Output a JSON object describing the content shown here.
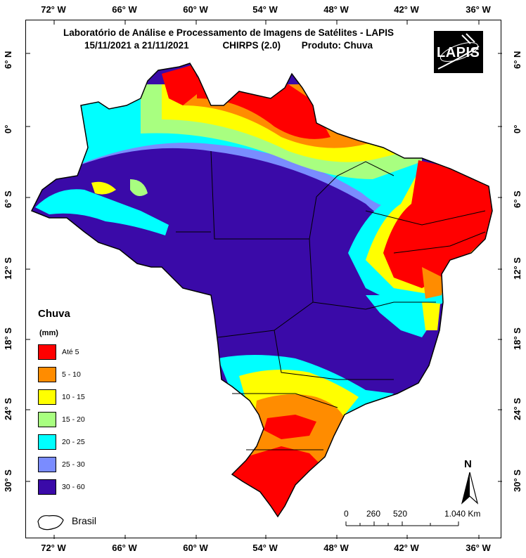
{
  "title": {
    "line1": "Laboratório de Análise e Processamento de Imagens de Satélites - LAPIS",
    "period": "15/11/2021  a 21/11/2021",
    "dataset": "CHIRPS (2.0)",
    "product": "Produto: Chuva"
  },
  "logo": {
    "text": "LAPIS"
  },
  "axes": {
    "longitude_top": [
      "72° W",
      "66° W",
      "60° W",
      "54° W",
      "48° W",
      "42° W",
      "36° W"
    ],
    "longitude_bottom": [
      "72° W",
      "66° W",
      "60° W",
      "54° W",
      "48° W",
      "42° W",
      "36° W"
    ],
    "latitude_left": [
      "6° N",
      "0°",
      "6° S",
      "12° S",
      "18° S",
      "24° S",
      "30° S"
    ],
    "latitude_right": [
      "6° N",
      "0°",
      "6° S",
      "12° S",
      "18° S",
      "24° S",
      "30° S"
    ]
  },
  "legend": {
    "title": "Chuva",
    "unit": "(mm)",
    "classes": [
      {
        "label": "Até 5",
        "color": "#ff0000"
      },
      {
        "label": "5 - 10",
        "color": "#ff8c00"
      },
      {
        "label": "10 - 15",
        "color": "#ffff00"
      },
      {
        "label": "15 - 20",
        "color": "#a8ff80"
      },
      {
        "label": "20 - 25",
        "color": "#00ffff"
      },
      {
        "label": "25 - 30",
        "color": "#7a8cff"
      },
      {
        "label": "30 - 60",
        "color": "#3a0aa8"
      }
    ],
    "boundary_label": "Brasil"
  },
  "scale_bar": {
    "labels": [
      "0",
      "260",
      "520",
      "1.040 Km"
    ]
  },
  "north_arrow": {
    "label": "N"
  }
}
